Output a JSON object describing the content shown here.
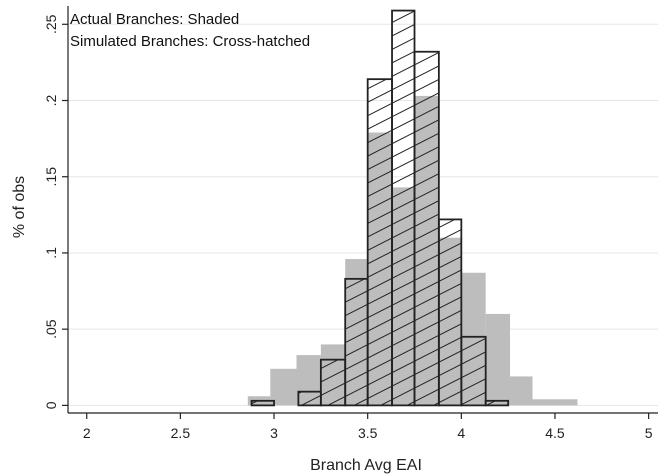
{
  "chart_data": {
    "type": "bar",
    "title": "",
    "xlabel": "Branch Avg EAI",
    "ylabel": "% of obs",
    "xlim": [
      1.9,
      5.05
    ],
    "ylim": [
      -0.005,
      0.262
    ],
    "x_ticks": [
      2,
      2.5,
      3,
      3.5,
      4,
      4.5,
      5
    ],
    "x_tick_labels": [
      "2",
      "2.5",
      "3",
      "3.5",
      "4",
      "4.5",
      "5"
    ],
    "y_ticks": [
      0,
      0.05,
      0.1,
      0.15,
      0.2,
      0.25
    ],
    "y_tick_labels": [
      "0",
      ".05",
      ".1",
      ".15",
      ".2",
      ".25"
    ],
    "grid": true,
    "annotations": [
      "Actual Branches: Shaded",
      "Simulated Branches: Cross-hatched"
    ],
    "colors": {
      "shaded": "#bdbdbd",
      "outline": "#222222",
      "grid": "#e6e6e6"
    },
    "series": [
      {
        "style": "shaded",
        "bins": [
          {
            "x0": 2.86,
            "x1": 2.98,
            "value": 0.006
          },
          {
            "x0": 2.98,
            "x1": 3.12,
            "value": 0.024
          },
          {
            "x0": 3.12,
            "x1": 3.25,
            "value": 0.033
          },
          {
            "x0": 3.25,
            "x1": 3.38,
            "value": 0.04
          },
          {
            "x0": 3.38,
            "x1": 3.5,
            "value": 0.096
          },
          {
            "x0": 3.5,
            "x1": 3.63,
            "value": 0.179
          },
          {
            "x0": 3.63,
            "x1": 3.75,
            "value": 0.143
          },
          {
            "x0": 3.75,
            "x1": 3.88,
            "value": 0.203
          },
          {
            "x0": 3.88,
            "x1": 4.0,
            "value": 0.11
          },
          {
            "x0": 4.0,
            "x1": 4.13,
            "value": 0.087
          },
          {
            "x0": 4.13,
            "x1": 4.26,
            "value": 0.06
          },
          {
            "x0": 4.26,
            "x1": 4.38,
            "value": 0.019
          },
          {
            "x0": 4.38,
            "x1": 4.62,
            "value": 0.004
          }
        ]
      },
      {
        "style": "cross-hatched",
        "bins": [
          {
            "x0": 2.88,
            "x1": 3.0,
            "value": 0.003
          },
          {
            "x0": 3.13,
            "x1": 3.25,
            "value": 0.009
          },
          {
            "x0": 3.25,
            "x1": 3.38,
            "value": 0.03
          },
          {
            "x0": 3.38,
            "x1": 3.5,
            "value": 0.083
          },
          {
            "x0": 3.5,
            "x1": 3.63,
            "value": 0.214
          },
          {
            "x0": 3.63,
            "x1": 3.75,
            "value": 0.259
          },
          {
            "x0": 3.75,
            "x1": 3.88,
            "value": 0.232
          },
          {
            "x0": 3.88,
            "x1": 4.0,
            "value": 0.122
          },
          {
            "x0": 4.0,
            "x1": 4.13,
            "value": 0.045
          },
          {
            "x0": 4.13,
            "x1": 4.25,
            "value": 0.003
          }
        ]
      }
    ]
  }
}
